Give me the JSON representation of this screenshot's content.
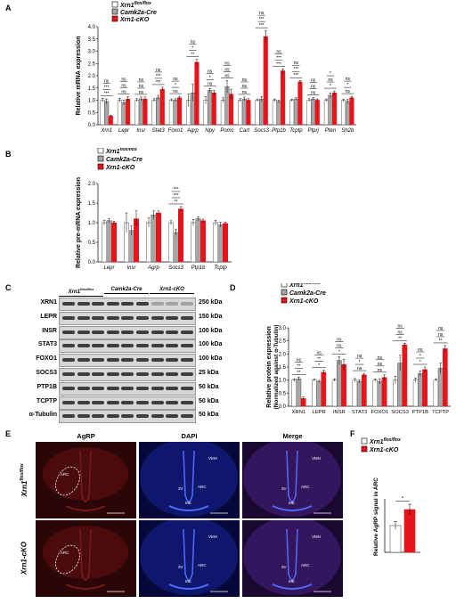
{
  "panels": {
    "A": "A",
    "B": "B",
    "C": "C",
    "D": "D",
    "E": "E",
    "F": "F"
  },
  "colors": {
    "flox": "#ffffff",
    "camk": "#a6a6a6",
    "cko": "#e8141b",
    "red_tissue": "#c0181c",
    "blue_tissue": "#1a1fb8"
  },
  "legend": {
    "flox": {
      "main": "Xrn1",
      "sup": "flox/flox"
    },
    "camk": "Camk2a-Cre",
    "cko": "Xrn1-cKO"
  },
  "chart_data": [
    {
      "id": "A",
      "type": "bar",
      "ylabel": "Relative mRNA expression",
      "ylim": [
        0,
        4.0
      ],
      "yticks": [
        "0.0",
        "0.5",
        "1.0",
        "1.5",
        "2.0",
        "2.5",
        "3.0",
        "3.5",
        "4.0"
      ],
      "categories": [
        "Xrn1",
        "Lepr",
        "Insr",
        "Stat3",
        "Foxo1",
        "Agrp",
        "Npy",
        "Pomc",
        "Cart",
        "Socs3",
        "Ptp1b",
        "Tcptp",
        "Ptprj",
        "Pten",
        "Sh2b"
      ],
      "series": [
        {
          "name": "Xrn1 flox/flox",
          "values": [
            1.0,
            1.0,
            1.0,
            1.0,
            1.0,
            1.0,
            1.0,
            1.0,
            1.0,
            1.0,
            1.0,
            1.0,
            1.0,
            1.0,
            1.0
          ],
          "err": [
            0.08,
            0.08,
            0.06,
            0.06,
            0.05,
            0.25,
            0.15,
            0.1,
            0.07,
            0.05,
            0.05,
            0.04,
            0.06,
            0.05,
            0.05
          ]
        },
        {
          "name": "Camk2a-Cre",
          "values": [
            0.95,
            0.9,
            1.05,
            1.1,
            1.0,
            1.3,
            1.4,
            1.55,
            1.05,
            1.05,
            0.95,
            1.05,
            1.05,
            1.2,
            0.95
          ],
          "err": [
            0.1,
            0.1,
            0.08,
            0.1,
            0.06,
            0.35,
            0.08,
            0.25,
            0.08,
            0.1,
            0.05,
            0.05,
            0.06,
            0.1,
            0.08
          ]
        },
        {
          "name": "Xrn1-cKO",
          "values": [
            0.35,
            1.05,
            1.05,
            1.45,
            1.1,
            2.55,
            1.3,
            1.25,
            1.0,
            3.6,
            2.2,
            1.75,
            1.0,
            1.3,
            1.1
          ],
          "err": [
            0.04,
            0.1,
            0.08,
            0.08,
            0.06,
            0.12,
            0.1,
            0.2,
            0.06,
            0.25,
            0.08,
            0.06,
            0.05,
            0.08,
            0.06
          ]
        }
      ],
      "annotations": [
        [
          "***",
          "***",
          "ns"
        ],
        [
          "ns",
          "ns",
          "ns"
        ],
        [
          "ns",
          "ns",
          "ns"
        ],
        [
          "***",
          "***",
          "ns"
        ],
        [
          "ns",
          "*",
          "ns"
        ],
        [
          "**",
          "*",
          "ns"
        ],
        [
          "ns",
          "*",
          "ns"
        ],
        [
          "ns",
          "ns",
          "ns"
        ],
        [
          "ns",
          "ns",
          "ns"
        ],
        [
          "***",
          "***",
          "ns"
        ],
        [
          "***",
          "***",
          "ns"
        ],
        [
          "***",
          "***",
          "ns"
        ],
        [
          "ns",
          "ns",
          "ns"
        ],
        [
          "*",
          "ns",
          "*"
        ],
        [
          "ns",
          "*",
          "ns"
        ]
      ]
    },
    {
      "id": "B",
      "type": "bar",
      "ylabel": "Relative pre-mRNA expression",
      "ylim": [
        0,
        2.0
      ],
      "yticks": [
        "0.0",
        "0.5",
        "1.0",
        "1.5",
        "2.0"
      ],
      "categories": [
        "Lepr",
        "Insr",
        "Agrp",
        "Socs3",
        "Ptp1b",
        "Tcptp"
      ],
      "series": [
        {
          "name": "Xrn1 flox/flox",
          "values": [
            1.0,
            1.0,
            1.0,
            1.0,
            1.0,
            1.0
          ],
          "err": [
            0.06,
            0.25,
            0.12,
            0.05,
            0.08,
            0.06
          ]
        },
        {
          "name": "Camk2a-Cre",
          "values": [
            1.05,
            0.8,
            1.2,
            0.75,
            1.1,
            0.95
          ],
          "err": [
            0.06,
            0.12,
            0.1,
            0.08,
            0.05,
            0.06
          ]
        },
        {
          "name": "Xrn1-cKO",
          "values": [
            1.0,
            1.1,
            1.25,
            1.35,
            1.05,
            0.98
          ],
          "err": [
            0.04,
            0.2,
            0.05,
            0.06,
            0.04,
            0.04
          ]
        }
      ],
      "annotations": [
        [
          "**",
          "***",
          "***"
        ]
      ]
    },
    {
      "id": "D",
      "type": "bar",
      "ylabel": "Relative protein expression",
      "ylabel2": "(Normalized against α-Tubulin)",
      "ylim": [
        0,
        3.0
      ],
      "yticks": [
        "0.0",
        "0.5",
        "1.0",
        "1.5",
        "2.0",
        "2.5",
        "3.0"
      ],
      "categories": [
        "XRN1",
        "LEPR",
        "INSR",
        "STAT3",
        "FOXO1",
        "SOCS3",
        "PTP1B",
        "TCPTP"
      ],
      "series": [
        {
          "name": "Xrn1 flox/flox",
          "values": [
            1.0,
            1.0,
            1.0,
            1.0,
            1.0,
            1.0,
            1.0,
            1.0
          ],
          "err": [
            0.05,
            0.04,
            0.05,
            0.06,
            0.05,
            0.15,
            0.08,
            0.05
          ]
        },
        {
          "name": "Camk2a-Cre",
          "values": [
            1.05,
            0.95,
            1.75,
            0.95,
            0.95,
            1.65,
            1.25,
            1.45
          ],
          "err": [
            0.06,
            0.04,
            0.15,
            0.06,
            0.1,
            0.3,
            0.1,
            0.2
          ]
        },
        {
          "name": "Xrn1-cKO",
          "values": [
            0.3,
            1.3,
            1.6,
            1.2,
            1.1,
            2.35,
            1.4,
            2.2
          ],
          "err": [
            0.05,
            0.08,
            0.2,
            0.06,
            0.1,
            0.06,
            0.1,
            0.12
          ]
        }
      ],
      "annotations": [
        [
          "**",
          "**",
          "ns"
        ],
        [
          "*",
          "**",
          "ns"
        ],
        [
          "*",
          "ns",
          "ns"
        ],
        [
          "ns",
          "*",
          "ns"
        ],
        [
          "ns",
          "ns",
          "ns"
        ],
        [
          "**",
          "ns",
          "ns"
        ],
        [
          "*",
          "*",
          "ns"
        ],
        [
          "**",
          "ns",
          "ns"
        ]
      ]
    },
    {
      "id": "F",
      "type": "bar",
      "ylabel": "Relative AgRP signal in ARC",
      "categories": [
        "Xrn1 flox/flox",
        "Xrn1-cKO"
      ],
      "values": [
        1.0,
        1.6
      ],
      "err": [
        0.15,
        0.2
      ],
      "annotations": [
        "*"
      ]
    }
  ],
  "blot": {
    "groups": [
      {
        "main": "Xrn1",
        "sup": "flox/flox"
      },
      {
        "main": "Camk2a-Cre",
        "sup": ""
      },
      {
        "main": "Xrn1-cKO",
        "sup": ""
      }
    ],
    "rows": [
      {
        "label": "XRN1",
        "kda": "250 kDa"
      },
      {
        "label": "LEPR",
        "kda": "150 kDa"
      },
      {
        "label": "INSR",
        "kda": "100 kDa"
      },
      {
        "label": "STAT3",
        "kda": "100 kDa"
      },
      {
        "label": "FOXO1",
        "kda": "100 kDa"
      },
      {
        "label": "SOCS3",
        "kda": "25 kDa"
      },
      {
        "label": "PTP1B",
        "kda": "50 kDa"
      },
      {
        "label": "TCPTP",
        "kda": "50 kDa"
      },
      {
        "label": "α-Tubulin",
        "kda": "50 kDa"
      }
    ]
  },
  "micro": {
    "columns": [
      "AgRP",
      "DAPI",
      "Merge"
    ],
    "rows": [
      {
        "main": "Xrn1",
        "sup": "flox/flox"
      },
      {
        "main": "Xrn1",
        "suffix": "-cKO"
      }
    ],
    "labels": {
      "arc": "ARC",
      "vmh": "VMH",
      "v3": "3V",
      "me": "ME"
    }
  }
}
